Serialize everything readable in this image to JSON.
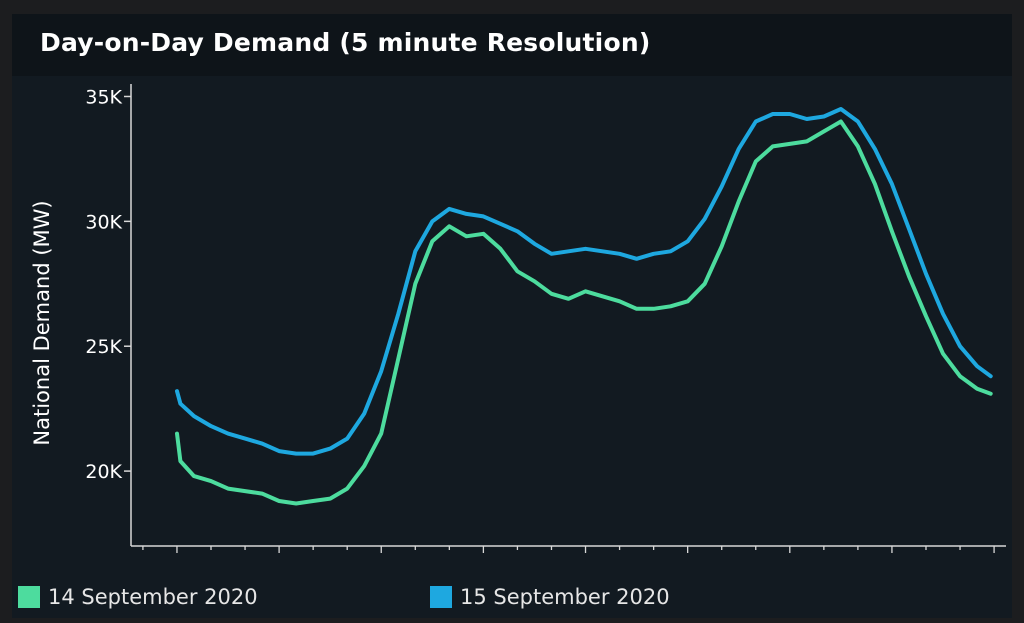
{
  "header": {
    "title": "Day-on-Day Demand (5 minute Resolution)"
  },
  "chart_data": {
    "type": "line",
    "title": "Day-on-Day Demand (5 minute Resolution)",
    "ylabel": "National Demand (MW)",
    "xlabel": "",
    "ylim": [
      17000,
      35500
    ],
    "y_ticks": [
      20000,
      25000,
      30000,
      35000
    ],
    "y_tick_labels": [
      "20K",
      "25K",
      "30K",
      "35K"
    ],
    "x_unit": "hour of day",
    "xlim": [
      -1.35,
      24.35
    ],
    "x_major_ticks": [
      0,
      3,
      6,
      9,
      12,
      15,
      18,
      21,
      24
    ],
    "grid": false,
    "legend_position": "bottom-left",
    "series": [
      {
        "name": "14 September 2020",
        "color": "#4ddc9e",
        "x": [
          0,
          0.1,
          0.5,
          1,
          1.5,
          2,
          2.5,
          3,
          3.5,
          4,
          4.5,
          5,
          5.5,
          6,
          6.5,
          7,
          7.5,
          8,
          8.5,
          9,
          9.5,
          10,
          10.5,
          11,
          11.5,
          12,
          12.5,
          13,
          13.5,
          14,
          14.5,
          15,
          15.5,
          16,
          16.5,
          17,
          17.5,
          18,
          18.5,
          19,
          19.5,
          20,
          20.5,
          21,
          21.5,
          22,
          22.5,
          23,
          23.5,
          23.9
        ],
        "y": [
          21500,
          20400,
          19800,
          19600,
          19300,
          19200,
          19100,
          18800,
          18700,
          18800,
          18900,
          19300,
          20200,
          21500,
          24500,
          27500,
          29200,
          29800,
          29400,
          29500,
          28900,
          28000,
          27600,
          27100,
          26900,
          27200,
          27000,
          26800,
          26500,
          26500,
          26600,
          26800,
          27500,
          29000,
          30800,
          32400,
          33000,
          33100,
          33200,
          33600,
          34000,
          33000,
          31500,
          29600,
          27800,
          26200,
          24700,
          23800,
          23300,
          23100
        ]
      },
      {
        "name": "15 September 2020",
        "color": "#1ea8e0",
        "x": [
          0,
          0.1,
          0.5,
          1,
          1.5,
          2,
          2.5,
          3,
          3.5,
          4,
          4.5,
          5,
          5.5,
          6,
          6.5,
          7,
          7.5,
          8,
          8.5,
          9,
          9.5,
          10,
          10.5,
          11,
          11.5,
          12,
          12.5,
          13,
          13.5,
          14,
          14.5,
          15,
          15.5,
          16,
          16.5,
          17,
          17.5,
          18,
          18.5,
          19,
          19.5,
          20,
          20.5,
          21,
          21.5,
          22,
          22.5,
          23,
          23.5,
          23.9
        ],
        "y": [
          23200,
          22700,
          22200,
          21800,
          21500,
          21300,
          21100,
          20800,
          20700,
          20700,
          20900,
          21300,
          22300,
          24000,
          26300,
          28800,
          30000,
          30500,
          30300,
          30200,
          29900,
          29600,
          29100,
          28700,
          28800,
          28900,
          28800,
          28700,
          28500,
          28700,
          28800,
          29200,
          30100,
          31400,
          32900,
          34000,
          34300,
          34300,
          34100,
          34200,
          34500,
          34000,
          32900,
          31500,
          29700,
          27900,
          26300,
          25000,
          24200,
          23800
        ]
      }
    ]
  }
}
